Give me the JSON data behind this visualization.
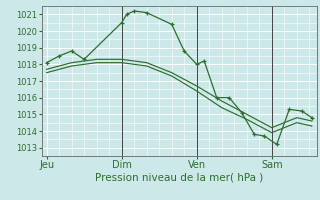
{
  "bg_color": "#cce8e8",
  "grid_color": "#ffffff",
  "line_color": "#2d6e2d",
  "marker_color": "#2d6e2d",
  "xlabel": "Pression niveau de la mer( hPa )",
  "xlabel_fontsize": 7.5,
  "ylim": [
    1012.5,
    1021.5
  ],
  "yticks": [
    1013,
    1014,
    1015,
    1016,
    1017,
    1018,
    1019,
    1020,
    1021
  ],
  "xtick_labels": [
    "Jeu",
    "Dim",
    "Ven",
    "Sam"
  ],
  "xtick_positions": [
    0,
    3,
    6,
    9
  ],
  "xlim": [
    -0.2,
    10.8
  ],
  "series1_x": [
    0,
    0.5,
    1.0,
    1.5,
    3.0,
    3.2,
    3.5,
    4.0,
    5.0,
    5.5,
    6.0,
    6.3,
    6.8,
    7.3,
    7.8,
    8.3,
    8.7,
    9.2,
    9.7,
    10.2,
    10.6
  ],
  "series1_y": [
    1018.1,
    1018.5,
    1018.8,
    1018.3,
    1020.5,
    1021.0,
    1021.2,
    1021.1,
    1020.4,
    1018.8,
    1018.0,
    1018.2,
    1016.0,
    1016.0,
    1015.1,
    1013.8,
    1013.7,
    1013.2,
    1015.3,
    1015.2,
    1014.8
  ],
  "series2_x": [
    0,
    1.0,
    2.0,
    3.0,
    4.0,
    5.0,
    6.0,
    7.0,
    8.0,
    9.0,
    10.0,
    10.6
  ],
  "series2_y": [
    1017.7,
    1018.1,
    1018.3,
    1018.3,
    1018.1,
    1017.5,
    1016.7,
    1015.8,
    1015.0,
    1014.2,
    1014.8,
    1014.6
  ],
  "series3_x": [
    0,
    1.0,
    2.0,
    3.0,
    4.0,
    5.0,
    6.0,
    7.0,
    8.0,
    9.0,
    10.0,
    10.6
  ],
  "series3_y": [
    1017.5,
    1017.9,
    1018.1,
    1018.1,
    1017.9,
    1017.3,
    1016.4,
    1015.4,
    1014.7,
    1013.9,
    1014.5,
    1014.3
  ],
  "vline_positions": [
    3.0,
    6.0,
    9.0
  ],
  "vline_color": "#444444",
  "figsize": [
    3.2,
    2.0
  ],
  "dpi": 100,
  "tick_fontsize": 6,
  "xtick_fontsize": 7
}
